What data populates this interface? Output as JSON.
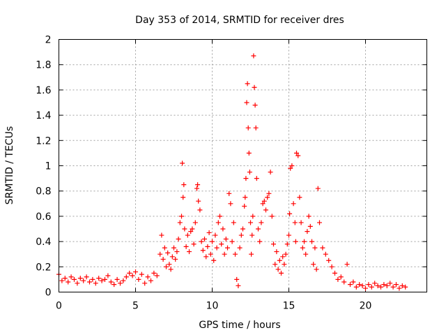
{
  "chart_data": {
    "type": "scatter",
    "title": "Day 353 of 2014, SRMTID for receiver dres",
    "xlabel": "GPS time / hours",
    "ylabel": "SRMTID / TECUs",
    "xlim": [
      0,
      24
    ],
    "ylim": [
      0,
      2
    ],
    "xticks": [
      0,
      5,
      10,
      15,
      20
    ],
    "yticks": [
      0,
      0.2,
      0.4,
      0.6,
      0.8,
      1,
      1.2,
      1.4,
      1.6,
      1.8,
      2
    ],
    "xtick_labels": [
      "0",
      "5",
      "10",
      "15",
      "20"
    ],
    "ytick_labels": [
      "0",
      "0.2",
      "0.4",
      "0.6",
      "0.8",
      "1",
      "1.2",
      "1.4",
      "1.6",
      "1.8",
      "2"
    ],
    "grid": true,
    "marker": "+",
    "series": [
      {
        "name": "SRMTID",
        "color": "#ff0000",
        "x": [
          0.0,
          0.2,
          0.4,
          0.6,
          0.8,
          1.0,
          1.2,
          1.4,
          1.6,
          1.8,
          2.0,
          2.2,
          2.4,
          2.6,
          2.8,
          3.0,
          3.2,
          3.4,
          3.6,
          3.8,
          4.0,
          4.2,
          4.4,
          4.6,
          4.8,
          5.0,
          5.2,
          5.4,
          5.6,
          5.8,
          6.0,
          6.2,
          6.4,
          6.6,
          6.7,
          6.8,
          6.9,
          7.0,
          7.1,
          7.2,
          7.3,
          7.4,
          7.5,
          7.6,
          7.7,
          7.8,
          7.9,
          8.0,
          8.05,
          8.1,
          8.15,
          8.2,
          8.3,
          8.4,
          8.5,
          8.6,
          8.7,
          8.8,
          8.9,
          9.0,
          9.05,
          9.1,
          9.2,
          9.3,
          9.4,
          9.5,
          9.6,
          9.7,
          9.8,
          9.9,
          10.0,
          10.1,
          10.2,
          10.3,
          10.4,
          10.5,
          10.6,
          10.7,
          10.8,
          10.9,
          11.0,
          11.1,
          11.2,
          11.3,
          11.4,
          11.5,
          11.6,
          11.7,
          11.8,
          11.9,
          12.0,
          12.1,
          12.15,
          12.2,
          12.25,
          12.3,
          12.35,
          12.4,
          12.45,
          12.5,
          12.55,
          12.6,
          12.65,
          12.7,
          12.75,
          12.8,
          12.85,
          12.9,
          13.0,
          13.1,
          13.2,
          13.3,
          13.4,
          13.5,
          13.6,
          13.7,
          13.8,
          13.9,
          14.0,
          14.1,
          14.2,
          14.3,
          14.4,
          14.5,
          14.6,
          14.7,
          14.8,
          14.9,
          15.0,
          15.05,
          15.1,
          15.2,
          15.3,
          15.4,
          15.45,
          15.5,
          15.6,
          15.7,
          15.8,
          15.9,
          16.0,
          16.1,
          16.2,
          16.3,
          16.4,
          16.5,
          16.6,
          16.7,
          16.8,
          16.9,
          17.0,
          17.2,
          17.4,
          17.6,
          17.8,
          18.0,
          18.2,
          18.4,
          18.6,
          18.8,
          19.0,
          19.2,
          19.4,
          19.6,
          19.8,
          20.0,
          20.2,
          20.4,
          20.6,
          20.8,
          21.0,
          21.2,
          21.4,
          21.6,
          21.8,
          22.0,
          22.2,
          22.4,
          22.6
        ],
        "y": [
          0.14,
          0.09,
          0.11,
          0.08,
          0.12,
          0.1,
          0.07,
          0.11,
          0.09,
          0.12,
          0.08,
          0.1,
          0.07,
          0.11,
          0.09,
          0.1,
          0.13,
          0.08,
          0.06,
          0.1,
          0.07,
          0.09,
          0.12,
          0.15,
          0.13,
          0.16,
          0.1,
          0.14,
          0.07,
          0.12,
          0.09,
          0.15,
          0.13,
          0.3,
          0.45,
          0.26,
          0.35,
          0.2,
          0.31,
          0.22,
          0.18,
          0.28,
          0.35,
          0.26,
          0.32,
          0.42,
          0.55,
          0.6,
          1.02,
          0.75,
          0.85,
          0.5,
          0.36,
          0.45,
          0.32,
          0.48,
          0.5,
          0.38,
          0.55,
          0.82,
          0.85,
          0.72,
          0.65,
          0.4,
          0.33,
          0.42,
          0.28,
          0.36,
          0.47,
          0.3,
          0.4,
          0.25,
          0.45,
          0.35,
          0.55,
          0.6,
          0.38,
          0.5,
          0.3,
          0.42,
          0.35,
          0.78,
          0.7,
          0.4,
          0.55,
          0.3,
          0.1,
          0.05,
          0.35,
          0.45,
          0.5,
          0.68,
          0.75,
          0.9,
          1.5,
          1.65,
          1.3,
          1.1,
          0.95,
          0.55,
          0.3,
          0.45,
          0.6,
          1.87,
          1.62,
          1.48,
          1.3,
          0.9,
          0.5,
          0.4,
          0.55,
          0.7,
          0.72,
          0.65,
          0.75,
          0.78,
          0.95,
          0.6,
          0.38,
          0.22,
          0.32,
          0.18,
          0.25,
          0.15,
          0.28,
          0.22,
          0.3,
          0.38,
          0.45,
          0.62,
          0.98,
          1.0,
          0.7,
          0.55,
          0.4,
          1.1,
          1.08,
          0.75,
          0.55,
          0.35,
          0.4,
          0.3,
          0.48,
          0.6,
          0.52,
          0.4,
          0.22,
          0.35,
          0.18,
          0.82,
          0.55,
          0.35,
          0.3,
          0.25,
          0.2,
          0.15,
          0.1,
          0.12,
          0.08,
          0.22,
          0.06,
          0.08,
          0.04,
          0.06,
          0.05,
          0.03,
          0.06,
          0.04,
          0.07,
          0.05,
          0.04,
          0.06,
          0.05,
          0.07,
          0.04,
          0.06,
          0.03,
          0.05,
          0.04
        ]
      }
    ]
  }
}
